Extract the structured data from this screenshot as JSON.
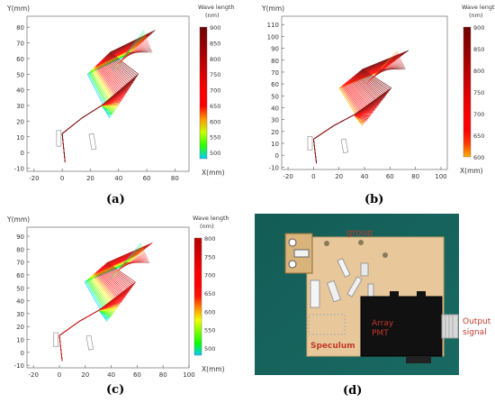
{
  "panels": [
    {
      "id": "a",
      "caption": "(a)",
      "x_axis_label": "X(mm)",
      "y_axis_label": "Y(mm)",
      "x_ticks": [
        "-20",
        "0",
        "20",
        "40",
        "60",
        "80"
      ],
      "y_ticks": [
        "-10",
        "0",
        "10",
        "20",
        "30",
        "40",
        "50",
        "60",
        "70",
        "80"
      ],
      "x_range": [
        -25,
        90
      ],
      "y_range": [
        -12,
        87
      ],
      "colorbar_title": [
        "Wave length",
        "(nm)"
      ],
      "colorbar_ticks": [
        "900",
        "850",
        "800",
        "750",
        "700",
        "650",
        "600",
        "550",
        "500"
      ],
      "colorbar_range": [
        480,
        900
      ]
    },
    {
      "id": "b",
      "caption": "(b)",
      "x_axis_label": "X(mm)",
      "y_axis_label": "Y(mm)",
      "x_ticks": [
        "-20",
        "0",
        "20",
        "40",
        "60",
        "80",
        "100"
      ],
      "y_ticks": [
        "-10",
        "0",
        "10",
        "20",
        "30",
        "40",
        "50",
        "60",
        "70",
        "80",
        "90",
        "100",
        "110"
      ],
      "x_range": [
        -25,
        105
      ],
      "y_range": [
        -12,
        117
      ],
      "colorbar_title": [
        "Wave length",
        "(nm)"
      ],
      "colorbar_ticks": [
        "900",
        "850",
        "800",
        "750",
        "700",
        "650",
        "600"
      ],
      "colorbar_range": [
        600,
        900
      ]
    },
    {
      "id": "c",
      "caption": "(c)",
      "x_axis_label": "X(mm)",
      "y_axis_label": "Y(mm)",
      "x_ticks": [
        "-20",
        "0",
        "20",
        "40",
        "60",
        "80",
        "100"
      ],
      "y_ticks": [
        "-10",
        "0",
        "10",
        "20",
        "30",
        "40",
        "50",
        "60",
        "70",
        "80",
        "90"
      ],
      "x_range": [
        -25,
        100
      ],
      "y_range": [
        -12,
        97
      ],
      "colorbar_title": [
        "Wave length",
        "(nm)"
      ],
      "colorbar_ticks": [
        "800",
        "750",
        "700",
        "650",
        "600",
        "550",
        "500"
      ],
      "colorbar_range": [
        480,
        800
      ]
    }
  ],
  "photo": {
    "caption": "(d)",
    "labels": {
      "group": "group",
      "speculum": "Speculum",
      "array_pmt": [
        "Array",
        "PMT"
      ],
      "output_signal": [
        "Output",
        "signal"
      ]
    }
  }
}
